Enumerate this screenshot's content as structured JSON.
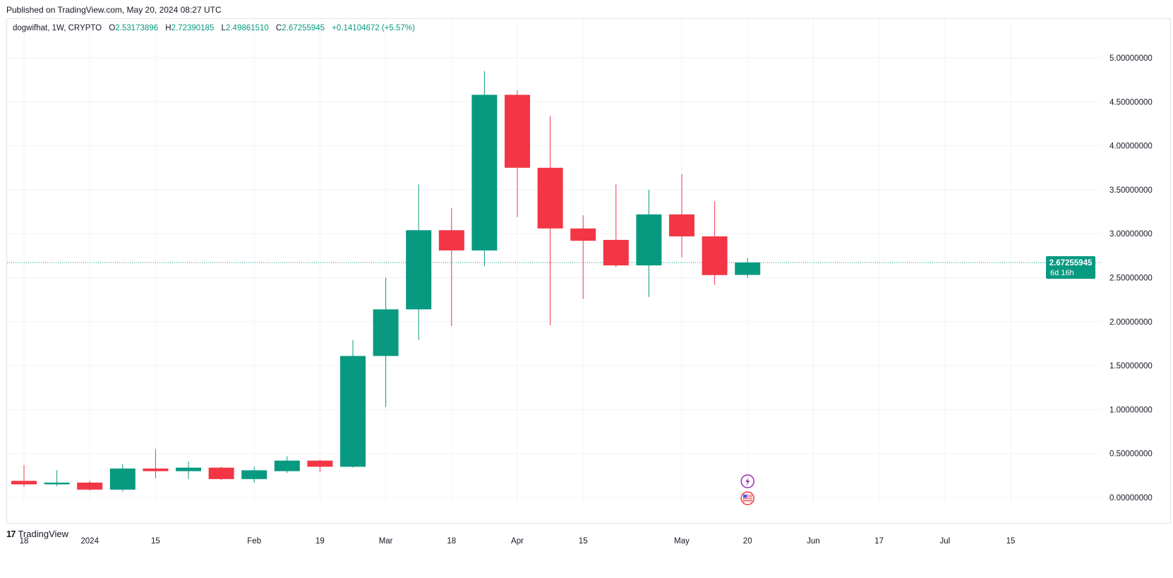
{
  "published": "Published on TradingView.com, May 20, 2024 08:27 UTC",
  "legend": {
    "symbol": "dogwifhat, 1W, CRYPTO",
    "o_label": "O",
    "o": "2.53173896",
    "h_label": "H",
    "h": "2.72390185",
    "l_label": "L",
    "l": "2.49861510",
    "c_label": "C",
    "c": "2.67255945",
    "change": "+0.14104672 (+5.57%)"
  },
  "footer": {
    "brand": "TradingView",
    "mark": "17"
  },
  "colors": {
    "up": "#089981",
    "down": "#f23645",
    "grid": "#f0f3fa",
    "text": "#131722",
    "event_purple": "#9c27b0",
    "event_red": "#f23645"
  },
  "chart_data": {
    "type": "candlestick",
    "interval": "1W",
    "ylim": [
      -0.4,
      5.3
    ],
    "y_ticks": [
      "5.00000000",
      "4.50000000",
      "4.00000000",
      "3.50000000",
      "3.00000000",
      "2.50000000",
      "2.00000000",
      "1.50000000",
      "1.00000000",
      "0.50000000",
      "0.00000000"
    ],
    "y_tick_values": [
      5.0,
      4.5,
      4.0,
      3.5,
      3.0,
      2.5,
      2.0,
      1.5,
      1.0,
      0.5,
      0.0
    ],
    "x_ticks": [
      {
        "label": "18",
        "week": 0
      },
      {
        "label": "2024",
        "week": 2
      },
      {
        "label": "15",
        "week": 4
      },
      {
        "label": "Feb",
        "week": 7
      },
      {
        "label": "19",
        "week": 9
      },
      {
        "label": "Mar",
        "week": 11
      },
      {
        "label": "18",
        "week": 13
      },
      {
        "label": "Apr",
        "week": 15
      },
      {
        "label": "15",
        "week": 17
      },
      {
        "label": "May",
        "week": 20
      },
      {
        "label": "20",
        "week": 22
      },
      {
        "label": "Jun",
        "week": 24
      },
      {
        "label": "17",
        "week": 26
      },
      {
        "label": "Jul",
        "week": 28
      },
      {
        "label": "15",
        "week": 30
      }
    ],
    "candles": [
      {
        "o": 0.19,
        "h": 0.37,
        "l": 0.12,
        "c": 0.15
      },
      {
        "o": 0.15,
        "h": 0.31,
        "l": 0.13,
        "c": 0.17
      },
      {
        "o": 0.17,
        "h": 0.19,
        "l": 0.08,
        "c": 0.09
      },
      {
        "o": 0.09,
        "h": 0.38,
        "l": 0.07,
        "c": 0.33
      },
      {
        "o": 0.33,
        "h": 0.55,
        "l": 0.22,
        "c": 0.3
      },
      {
        "o": 0.3,
        "h": 0.41,
        "l": 0.21,
        "c": 0.34
      },
      {
        "o": 0.34,
        "h": 0.35,
        "l": 0.2,
        "c": 0.21
      },
      {
        "o": 0.21,
        "h": 0.35,
        "l": 0.17,
        "c": 0.31
      },
      {
        "o": 0.3,
        "h": 0.47,
        "l": 0.28,
        "c": 0.42
      },
      {
        "o": 0.42,
        "h": 0.43,
        "l": 0.29,
        "c": 0.35
      },
      {
        "o": 0.35,
        "h": 1.79,
        "l": 0.34,
        "c": 1.61
      },
      {
        "o": 1.61,
        "h": 2.5,
        "l": 1.03,
        "c": 2.14
      },
      {
        "o": 2.14,
        "h": 3.56,
        "l": 1.79,
        "c": 3.04
      },
      {
        "o": 3.04,
        "h": 3.29,
        "l": 1.95,
        "c": 2.81
      },
      {
        "o": 2.81,
        "h": 4.85,
        "l": 2.63,
        "c": 4.58
      },
      {
        "o": 4.58,
        "h": 4.63,
        "l": 3.19,
        "c": 3.75
      },
      {
        "o": 3.75,
        "h": 4.34,
        "l": 1.96,
        "c": 3.06
      },
      {
        "o": 3.06,
        "h": 3.21,
        "l": 2.26,
        "c": 2.92
      },
      {
        "o": 2.93,
        "h": 3.56,
        "l": 2.62,
        "c": 2.64
      },
      {
        "o": 2.64,
        "h": 3.5,
        "l": 2.28,
        "c": 3.22
      },
      {
        "o": 3.22,
        "h": 3.68,
        "l": 2.73,
        "c": 2.97
      },
      {
        "o": 2.97,
        "h": 3.37,
        "l": 2.42,
        "c": 2.53
      },
      {
        "o": 2.53173896,
        "h": 2.72390185,
        "l": 2.4986151,
        "c": 2.67255945
      }
    ],
    "last_price": "2.67255945",
    "countdown": "6d 16h",
    "last_price_value": 2.67255945,
    "events": [
      {
        "week": 22,
        "icon": "lightning-event-icon"
      },
      {
        "week": 22,
        "icon": "us-flag-event-icon"
      }
    ]
  }
}
